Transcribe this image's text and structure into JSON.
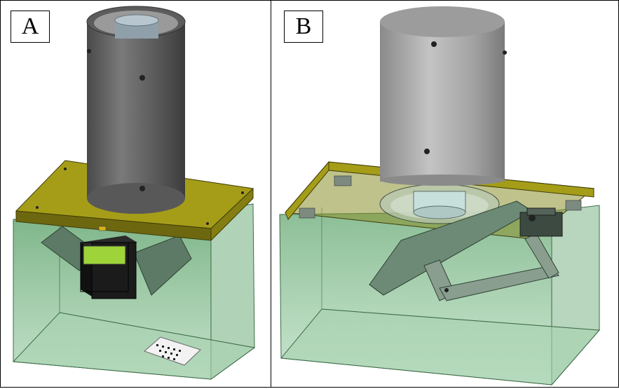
{
  "panels": [
    {
      "label": "A"
    },
    {
      "label": "B"
    }
  ],
  "colors": {
    "border": "#000000",
    "tray_green": "#5fa56b",
    "plate_olive": "#a09a1a",
    "cylinder_gray": "#6b6b6b",
    "cylinder_light": "#b8b8b8",
    "display_green": "#9fd33a",
    "lever_green": "#5d7a66"
  },
  "icons": [
    "concrete-cylinder-icon",
    "mounting-plate-icon",
    "transparent-enclosure-icon",
    "lcd-display-icon",
    "sensor-icon",
    "lever-arm-icon",
    "servo-motor-icon"
  ]
}
